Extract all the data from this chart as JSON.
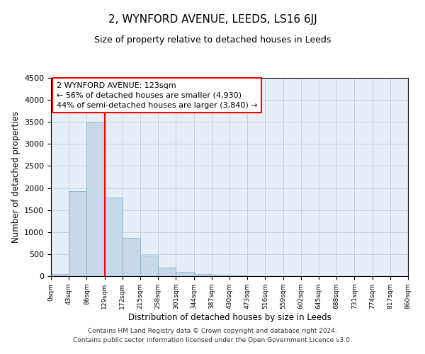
{
  "title_line1": "2, WYNFORD AVENUE, LEEDS, LS16 6JJ",
  "title_line2": "Size of property relative to detached houses in Leeds",
  "xlabel": "Distribution of detached houses by size in Leeds",
  "ylabel": "Number of detached properties",
  "bar_color": "#c8d8eb",
  "bar_edge_color": "#7aaac8",
  "background_color": "#ffffff",
  "ax_background_color": "#e8eef5",
  "grid_color": "#b8c8d8",
  "vline_x": 129,
  "vline_color": "red",
  "bin_edges": [
    0,
    43,
    86,
    129,
    172,
    215,
    258,
    301,
    344,
    387,
    430,
    473,
    516,
    559,
    602,
    645,
    688,
    731,
    774,
    817,
    860
  ],
  "bar_heights": [
    50,
    1930,
    3500,
    1780,
    870,
    460,
    185,
    100,
    55,
    30,
    10,
    0,
    0,
    0,
    0,
    0,
    0,
    0,
    0,
    0
  ],
  "ylim": [
    0,
    4500
  ],
  "yticks": [
    0,
    500,
    1000,
    1500,
    2000,
    2500,
    3000,
    3500,
    4000,
    4500
  ],
  "xtick_labels": [
    "0sqm",
    "43sqm",
    "86sqm",
    "129sqm",
    "172sqm",
    "215sqm",
    "258sqm",
    "301sqm",
    "344sqm",
    "387sqm",
    "430sqm",
    "473sqm",
    "516sqm",
    "559sqm",
    "602sqm",
    "645sqm",
    "688sqm",
    "731sqm",
    "774sqm",
    "817sqm",
    "860sqm"
  ],
  "annotation_title": "2 WYNFORD AVENUE: 123sqm",
  "annotation_line1": "← 56% of detached houses are smaller (4,930)",
  "annotation_line2": "44% of semi-detached houses are larger (3,840) →",
  "annotation_box_color": "#ffffff",
  "annotation_box_edge": "red",
  "footer_line1": "Contains HM Land Registry data © Crown copyright and database right 2024.",
  "footer_line2": "Contains public sector information licensed under the Open Government Licence v3.0."
}
